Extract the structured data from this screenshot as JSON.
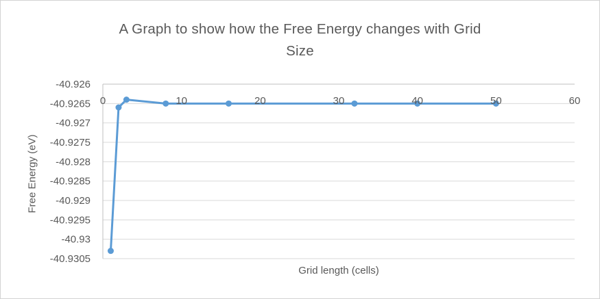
{
  "chart_data": {
    "type": "line",
    "title": "A Graph to show how the Free Energy changes with Grid Size",
    "title_lines": [
      "A Graph to show how the Free Energy changes with Grid",
      "Size"
    ],
    "xlabel": "Grid length (cells)",
    "ylabel": "Free Energy (eV)",
    "x": [
      1,
      2,
      3,
      8,
      16,
      32,
      40,
      50
    ],
    "y": [
      -40.9303,
      -40.9266,
      -40.9264,
      -40.9265,
      -40.9265,
      -40.9265,
      -40.9265,
      -40.9265
    ],
    "xlim": [
      0,
      60
    ],
    "ylim": [
      -40.9305,
      -40.926
    ],
    "xticks": [
      0,
      10,
      20,
      30,
      40,
      50,
      60
    ],
    "xtick_labels": [
      "0",
      "10",
      "20",
      "30",
      "40",
      "50",
      "60"
    ],
    "yticks": [
      -40.926,
      -40.9265,
      -40.927,
      -40.9275,
      -40.928,
      -40.9285,
      -40.929,
      -40.9295,
      -40.93,
      -40.9305
    ],
    "ytick_labels": [
      "-40.926",
      "-40.9265",
      "-40.927",
      "-40.9275",
      "-40.928",
      "-40.9285",
      "-40.929",
      "-40.9295",
      "-40.93",
      "-40.9305"
    ],
    "grid": true,
    "legend": false,
    "marker": "circle"
  },
  "colors": {
    "series": "#5B9BD5",
    "gridline": "#D9D9D9",
    "axis_line": "#BFBFBF",
    "text": "#595959",
    "frame_border": "#D2D2D2",
    "background": "#FFFFFF"
  }
}
